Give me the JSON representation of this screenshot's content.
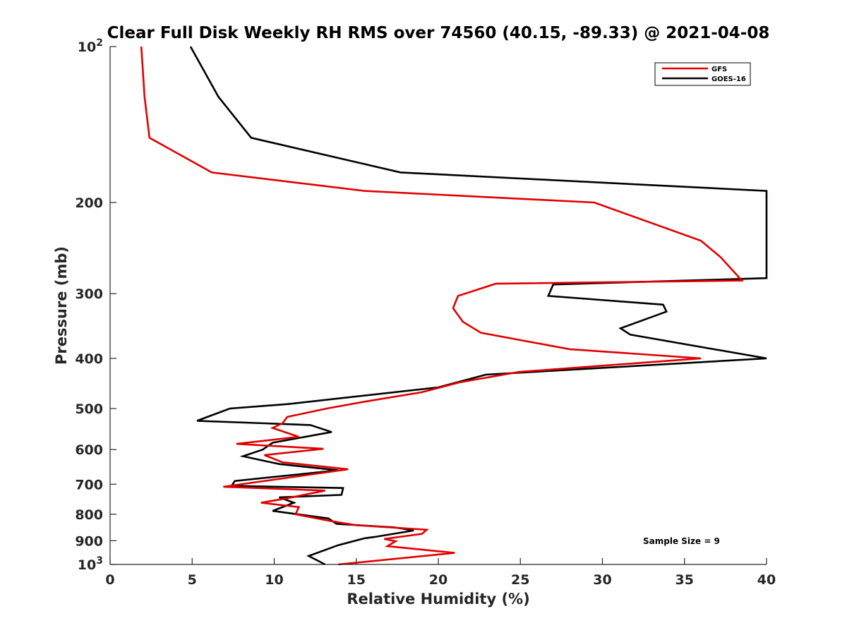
{
  "chart_data": {
    "type": "line",
    "title": "Clear Full Disk Weekly RH RMS over 74560 (40.15, -89.33) @ 2021-04-08",
    "xlabel": "Relative Humidity (%)",
    "ylabel": "Pressure (mb)",
    "xlim": [
      0,
      40
    ],
    "ylim": [
      100,
      1000
    ],
    "y_scale": "log",
    "y_reversed": true,
    "grid": false,
    "legend_position": "top-right",
    "annotation": "Sample Size = 9",
    "x_ticks": [
      {
        "value": 0,
        "label": "0"
      },
      {
        "value": 5,
        "label": "5"
      },
      {
        "value": 10,
        "label": "10"
      },
      {
        "value": 15,
        "label": "15"
      },
      {
        "value": 20,
        "label": "20"
      },
      {
        "value": 25,
        "label": "25"
      },
      {
        "value": 30,
        "label": "30"
      },
      {
        "value": 35,
        "label": "35"
      },
      {
        "value": 40,
        "label": "40"
      }
    ],
    "y_ticks": [
      {
        "value": 100,
        "label": "10",
        "sup": "2"
      },
      {
        "value": 200,
        "label": "200"
      },
      {
        "value": 300,
        "label": "300"
      },
      {
        "value": 400,
        "label": "400"
      },
      {
        "value": 500,
        "label": "500"
      },
      {
        "value": 600,
        "label": "600"
      },
      {
        "value": 700,
        "label": "700"
      },
      {
        "value": 800,
        "label": "800"
      },
      {
        "value": 900,
        "label": "900"
      },
      {
        "value": 1000,
        "label": "10",
        "sup": "3"
      }
    ],
    "series": [
      {
        "name": "GFS",
        "color": "#e00000",
        "points": [
          [
            1.9,
            100
          ],
          [
            2.1,
            125
          ],
          [
            2.4,
            150
          ],
          [
            6.2,
            175
          ],
          [
            15.5,
            190
          ],
          [
            29.5,
            200
          ],
          [
            36.0,
            237
          ],
          [
            37.2,
            255
          ],
          [
            38.5,
            283
          ],
          [
            23.5,
            287
          ],
          [
            21.2,
            303
          ],
          [
            20.9,
            320
          ],
          [
            21.5,
            340
          ],
          [
            22.6,
            357
          ],
          [
            28.0,
            384
          ],
          [
            36.0,
            400
          ],
          [
            24.9,
            425
          ],
          [
            21.3,
            445
          ],
          [
            19.0,
            465
          ],
          [
            15.5,
            485
          ],
          [
            13.2,
            500
          ],
          [
            10.8,
            519
          ],
          [
            10.5,
            534
          ],
          [
            9.9,
            545
          ],
          [
            11.5,
            567
          ],
          [
            7.7,
            585
          ],
          [
            13.0,
            598
          ],
          [
            9.4,
            615
          ],
          [
            10.5,
            635
          ],
          [
            14.5,
            655
          ],
          [
            6.9,
            708
          ],
          [
            13.1,
            720
          ],
          [
            10.8,
            745
          ],
          [
            9.2,
            760
          ],
          [
            11.5,
            775
          ],
          [
            11.3,
            800
          ],
          [
            13.2,
            822
          ],
          [
            15.0,
            840
          ],
          [
            19.3,
            857
          ],
          [
            19.0,
            873
          ],
          [
            16.7,
            893
          ],
          [
            17.4,
            902
          ],
          [
            16.9,
            922
          ],
          [
            21.0,
            950
          ],
          [
            13.9,
            1000
          ]
        ]
      },
      {
        "name": "GOES-16",
        "color": "#000000",
        "points": [
          [
            4.9,
            100
          ],
          [
            6.6,
            125
          ],
          [
            8.6,
            150
          ],
          [
            17.7,
            175
          ],
          [
            40.0,
            190
          ],
          [
            40.0,
            280
          ],
          [
            27.0,
            288
          ],
          [
            26.7,
            303
          ],
          [
            33.7,
            315
          ],
          [
            33.9,
            325
          ],
          [
            31.1,
            350
          ],
          [
            31.7,
            360
          ],
          [
            40.0,
            400
          ],
          [
            22.9,
            430
          ],
          [
            20.0,
            455
          ],
          [
            10.9,
            490
          ],
          [
            7.3,
            500
          ],
          [
            5.3,
            528
          ],
          [
            12.2,
            538
          ],
          [
            13.5,
            555
          ],
          [
            9.9,
            582
          ],
          [
            9.3,
            600
          ],
          [
            8.1,
            618
          ],
          [
            10.3,
            640
          ],
          [
            13.9,
            658
          ],
          [
            7.6,
            690
          ],
          [
            7.4,
            705
          ],
          [
            14.2,
            712
          ],
          [
            14.1,
            734
          ],
          [
            10.3,
            742
          ],
          [
            11.2,
            760
          ],
          [
            9.9,
            788
          ],
          [
            13.3,
            815
          ],
          [
            13.8,
            835
          ],
          [
            17.3,
            848
          ],
          [
            18.5,
            860
          ],
          [
            16.1,
            885
          ],
          [
            15.5,
            890
          ],
          [
            13.9,
            918
          ],
          [
            12.1,
            963
          ],
          [
            13.1,
            1000
          ]
        ]
      }
    ]
  }
}
